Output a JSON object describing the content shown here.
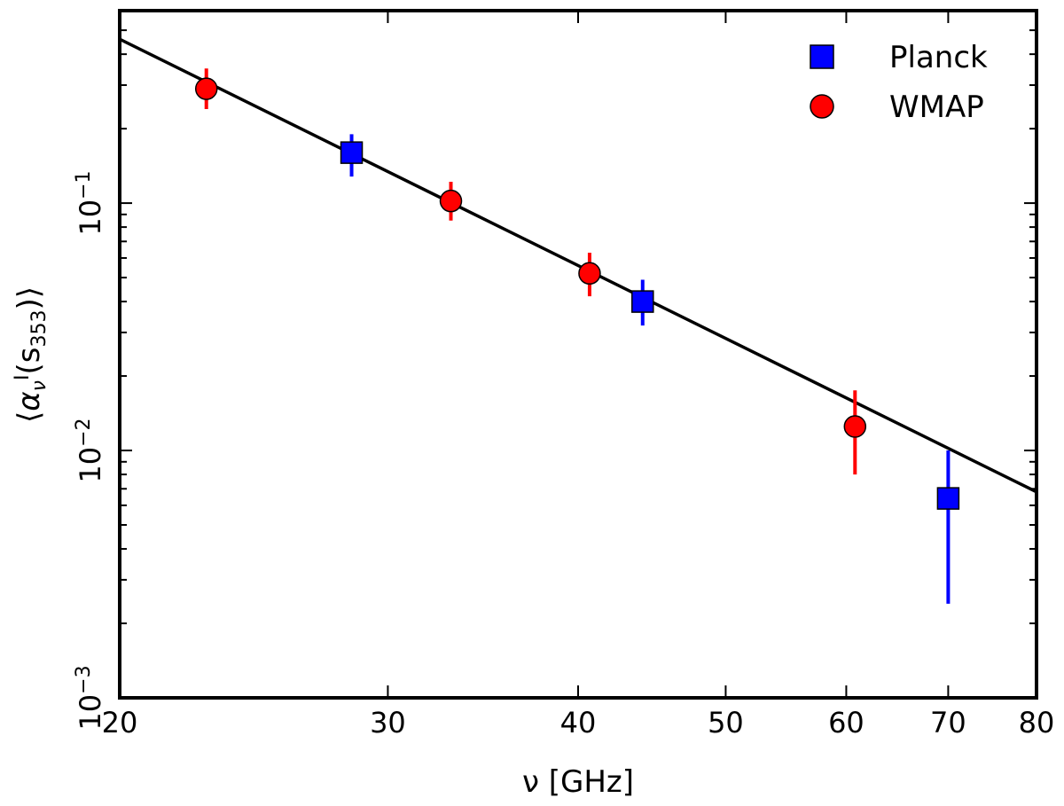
{
  "chart_data": {
    "type": "scatter",
    "xscale": "log",
    "yscale": "log",
    "xlim": [
      20,
      80
    ],
    "ylim": [
      0.001,
      0.6
    ],
    "xticks": [
      20,
      30,
      40,
      50,
      60,
      70,
      80
    ],
    "xtick_labels": [
      "20",
      "30",
      "40",
      "50",
      "60",
      "70",
      "80"
    ],
    "yticks": [
      0.001,
      0.01,
      0.1
    ],
    "ytick_labels": [
      {
        "base": "10",
        "exp": "−3"
      },
      {
        "base": "10",
        "exp": "−2"
      },
      {
        "base": "10",
        "exp": "−1"
      }
    ],
    "xlabel": "ν [GHz]",
    "ylabel": {
      "open": "⟨",
      "alpha": "α",
      "sub": "ν",
      "sup": "I",
      "arg": "(s",
      "argsub": "353",
      "close": ")⟩"
    },
    "legend_position": "top-right",
    "series": [
      {
        "name": "Planck",
        "marker": "square",
        "color": "#0000ff",
        "points": [
          {
            "x": 28.4,
            "y": 0.16,
            "ylo": 0.128,
            "yhi": 0.19
          },
          {
            "x": 44.1,
            "y": 0.04,
            "ylo": 0.032,
            "yhi": 0.049
          },
          {
            "x": 70.0,
            "y": 0.0064,
            "ylo": 0.0024,
            "yhi": 0.01
          }
        ]
      },
      {
        "name": "WMAP",
        "marker": "circle",
        "color": "#ff0000",
        "points": [
          {
            "x": 22.8,
            "y": 0.29,
            "ylo": 0.24,
            "yhi": 0.35
          },
          {
            "x": 33.0,
            "y": 0.102,
            "ylo": 0.085,
            "yhi": 0.122
          },
          {
            "x": 40.7,
            "y": 0.052,
            "ylo": 0.042,
            "yhi": 0.063
          },
          {
            "x": 60.8,
            "y": 0.0125,
            "ylo": 0.008,
            "yhi": 0.0175
          }
        ]
      }
    ],
    "fit_line": {
      "color": "#000000",
      "x": [
        20,
        80
      ],
      "y": [
        0.46,
        0.0068
      ]
    }
  }
}
